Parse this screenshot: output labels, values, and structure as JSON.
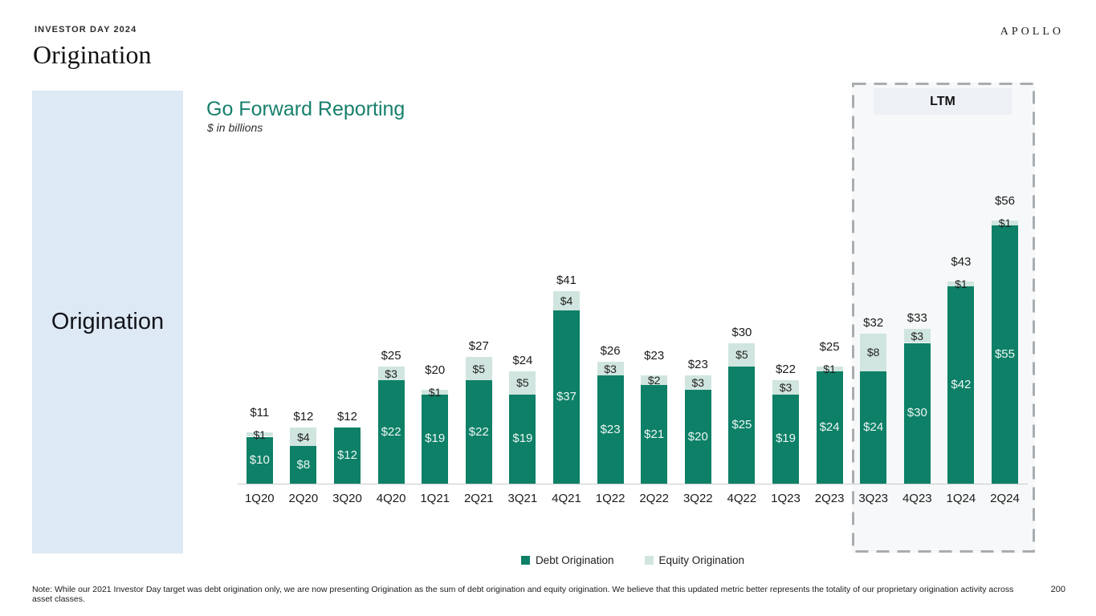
{
  "header": {
    "eyebrow": "INVESTOR DAY 2024",
    "title": "Origination",
    "logo": "APOLLO"
  },
  "sidebar": {
    "label": "Origination"
  },
  "chart": {
    "title": "Go Forward Reporting",
    "subtitle": "$ in billions",
    "ltm_label": "LTM",
    "legend": [
      {
        "label": "Debt Origination",
        "color": "#0d8067"
      },
      {
        "label": "Equity Origination",
        "color": "#d0e5df"
      }
    ]
  },
  "chart_data": {
    "type": "bar",
    "stacked": true,
    "title": "Go Forward Reporting",
    "units": "$ in billions",
    "categories": [
      "1Q20",
      "2Q20",
      "3Q20",
      "4Q20",
      "1Q21",
      "2Q21",
      "3Q21",
      "4Q21",
      "1Q22",
      "2Q22",
      "3Q22",
      "4Q22",
      "1Q23",
      "2Q23",
      "3Q23",
      "4Q23",
      "1Q24",
      "2Q24"
    ],
    "series": [
      {
        "name": "Debt Origination",
        "color": "#0d8067",
        "values": [
          10,
          8,
          12,
          22,
          19,
          22,
          19,
          37,
          23,
          21,
          20,
          25,
          19,
          24,
          24,
          30,
          42,
          55
        ]
      },
      {
        "name": "Equity Origination",
        "color": "#d0e5df",
        "values": [
          1,
          4,
          0,
          3,
          1,
          5,
          5,
          4,
          3,
          2,
          3,
          5,
          3,
          1,
          8,
          3,
          1,
          1
        ]
      }
    ],
    "totals": [
      11,
      12,
      12,
      25,
      20,
      27,
      24,
      41,
      26,
      23,
      23,
      30,
      22,
      25,
      32,
      33,
      43,
      56
    ],
    "ltm_categories": [
      "3Q23",
      "4Q23",
      "1Q24",
      "2Q24"
    ],
    "ylim": [
      0,
      60
    ],
    "grid": false,
    "legend_position": "bottom"
  },
  "footer": {
    "note": "Note: While our 2021 Investor Day target was debt origination only, we are now presenting Origination as the sum of debt origination and equity origination. We believe that this updated metric better represents the totality of our proprietary origination activity across asset classes.",
    "page_number": "200"
  }
}
